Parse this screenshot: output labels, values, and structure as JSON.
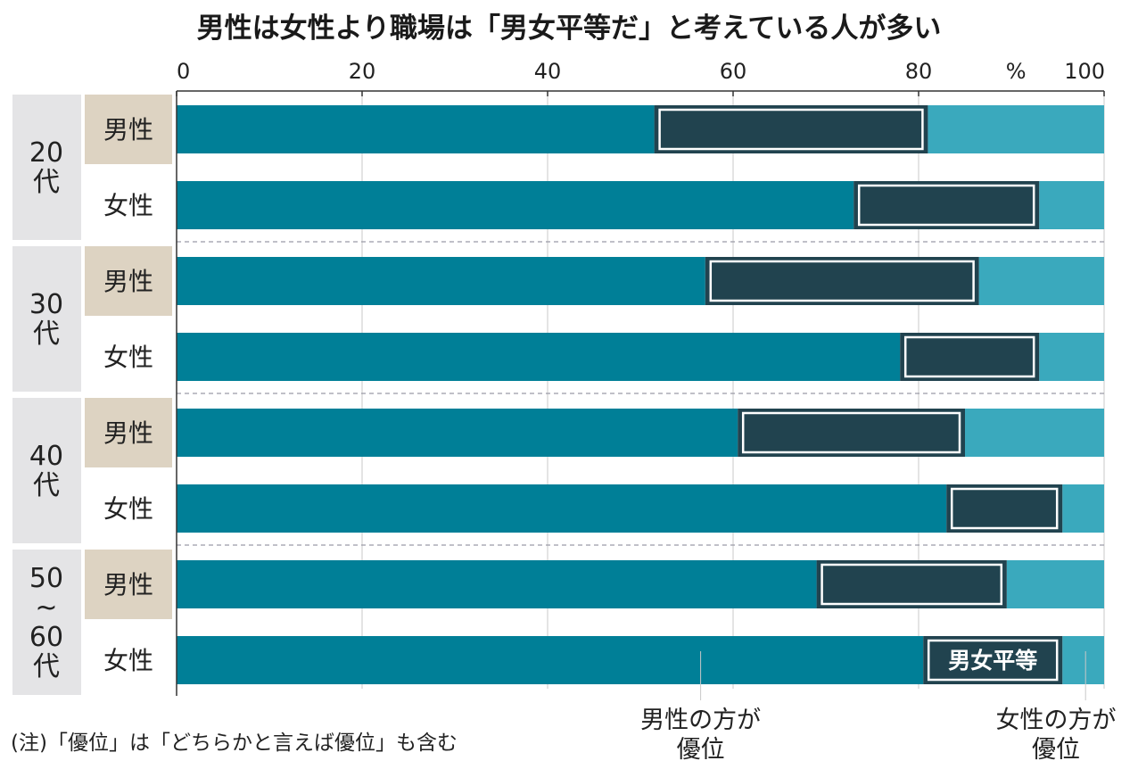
{
  "chart_data": {
    "type": "bar",
    "stacked": true,
    "orientation": "horizontal",
    "title": "男性は女性より職場は「男女平等だ」と考えている人が多い",
    "unit_label": "%",
    "xlim": [
      0,
      100
    ],
    "ticks": [
      "0",
      "20",
      "40",
      "60",
      "80",
      "100"
    ],
    "tick_values": [
      0,
      20,
      40,
      60,
      80,
      100
    ],
    "series": [
      {
        "name": "男性の方が優位",
        "color": "#007f97"
      },
      {
        "name": "男女平等",
        "color": "#21434f"
      },
      {
        "name": "女性の方が優位",
        "color": "#3aa9bd"
      }
    ],
    "groups": [
      {
        "label_lines": [
          "20",
          "代"
        ],
        "rows": [
          {
            "label": "男性",
            "highlight": true,
            "values": [
              51.5,
              29.5,
              19.0
            ]
          },
          {
            "label": "女性",
            "highlight": false,
            "values": [
              73.0,
              20.0,
              7.0
            ]
          }
        ]
      },
      {
        "label_lines": [
          "30",
          "代"
        ],
        "rows": [
          {
            "label": "男性",
            "highlight": true,
            "values": [
              57.0,
              29.5,
              13.5
            ]
          },
          {
            "label": "女性",
            "highlight": false,
            "values": [
              78.0,
              15.0,
              7.0
            ]
          }
        ]
      },
      {
        "label_lines": [
          "40",
          "代"
        ],
        "rows": [
          {
            "label": "男性",
            "highlight": true,
            "values": [
              60.5,
              24.5,
              15.0
            ]
          },
          {
            "label": "女性",
            "highlight": false,
            "values": [
              83.0,
              12.5,
              4.5
            ]
          }
        ]
      },
      {
        "label_lines": [
          "50",
          "~",
          "60",
          "代"
        ],
        "rows": [
          {
            "label": "男性",
            "highlight": true,
            "values": [
              69.0,
              20.5,
              10.5
            ]
          },
          {
            "label": "女性",
            "highlight": false,
            "values": [
              80.5,
              15.0,
              4.5
            ]
          }
        ]
      }
    ],
    "inline_label": "男女平等",
    "annotations": {
      "men_advantage": [
        "男性の方が",
        "優位"
      ],
      "women_advantage": [
        "女性の方が",
        "優位"
      ]
    },
    "note": "(注)「優位」は「どちらかと言えば優位」も含む",
    "colors": {
      "men_adv": "#007f97",
      "equal": "#21434f",
      "women_adv": "#3aa9bd",
      "group_bg": "#e4e4e6",
      "male_bg": "#ddd3c2",
      "grid": "#c8c8c8",
      "separator": "#9a9aa6"
    }
  }
}
